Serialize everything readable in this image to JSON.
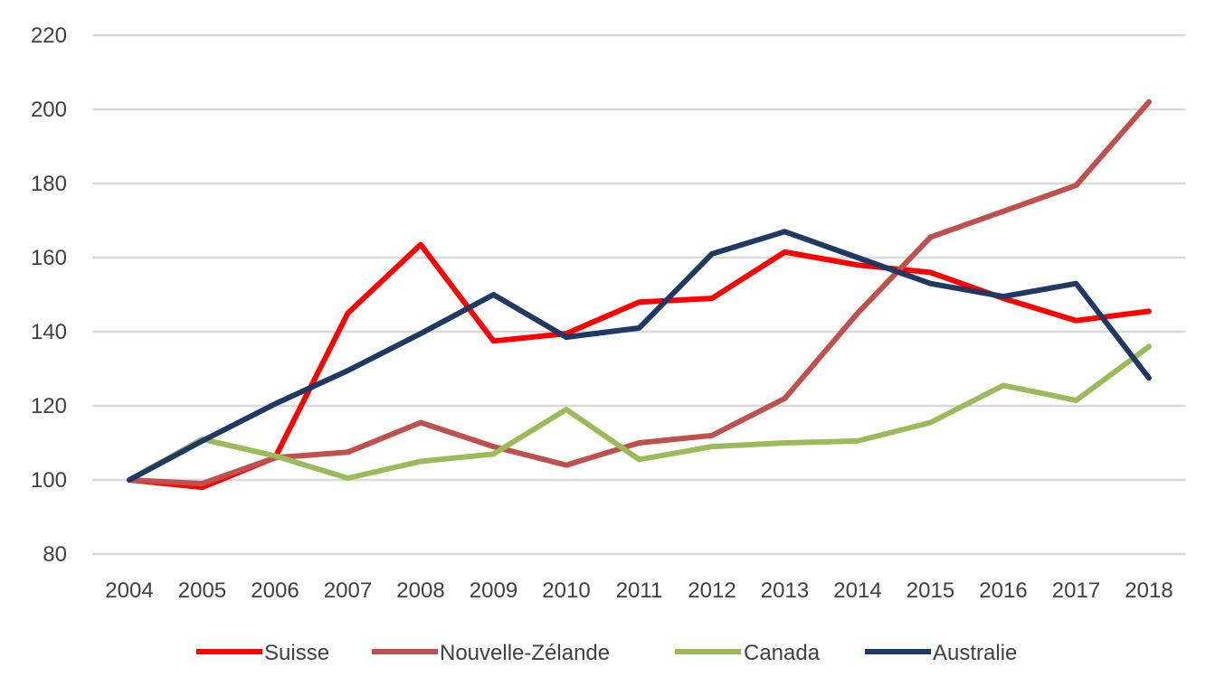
{
  "chart_data": {
    "type": "line",
    "title": "",
    "xlabel": "",
    "ylabel": "",
    "categories": [
      "2004",
      "2005",
      "2006",
      "2007",
      "2008",
      "2009",
      "2010",
      "2011",
      "2012",
      "2013",
      "2014",
      "2015",
      "2016",
      "2017",
      "2018"
    ],
    "ylim": [
      80,
      220
    ],
    "yticks": [
      80,
      100,
      120,
      140,
      160,
      180,
      200,
      220
    ],
    "grid": true,
    "legend_position": "bottom",
    "series": [
      {
        "name": "Suisse",
        "color": "#ff0000",
        "values": [
          100,
          98,
          106,
          145,
          163.5,
          137.5,
          139.5,
          148,
          149,
          161.5,
          158,
          156,
          149,
          143,
          145.5
        ]
      },
      {
        "name": "Nouvelle-Zélande",
        "color": "#c0504d",
        "values": [
          100,
          99,
          106,
          107.5,
          115.5,
          109,
          104,
          110,
          112,
          122,
          145,
          165.5,
          172.5,
          179.5,
          202
        ]
      },
      {
        "name": "Canada",
        "color": "#9bbb59",
        "values": [
          100,
          111,
          106.5,
          100.5,
          105,
          107,
          119,
          105.5,
          109,
          110,
          110.5,
          115.5,
          125.5,
          121.5,
          136
        ]
      },
      {
        "name": "Australie",
        "color": "#1f3864",
        "values": [
          100,
          110.5,
          120.5,
          129.5,
          139.5,
          150,
          138.5,
          141,
          161,
          167,
          160,
          153,
          149.5,
          153,
          127.5
        ]
      }
    ]
  }
}
